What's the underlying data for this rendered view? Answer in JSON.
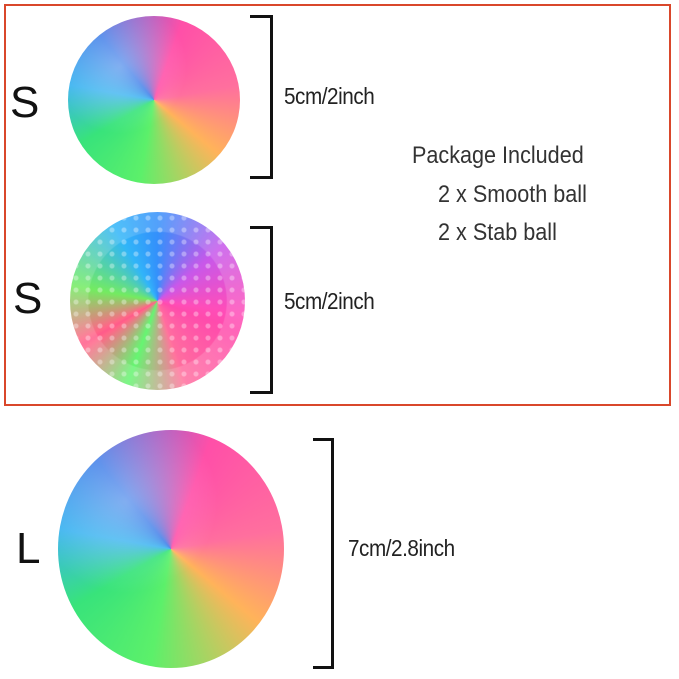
{
  "frame_color": "#d9472b",
  "small_smooth": {
    "size_label": "S",
    "dimension": "5cm/2inch"
  },
  "small_stab": {
    "size_label": "S",
    "dimension": "5cm/2inch"
  },
  "large_smooth": {
    "size_label": "L",
    "dimension": "7cm/2.8inch"
  },
  "package": {
    "title": "Package Included",
    "items": [
      "2 x Smooth ball",
      "2 x Stab ball"
    ]
  }
}
